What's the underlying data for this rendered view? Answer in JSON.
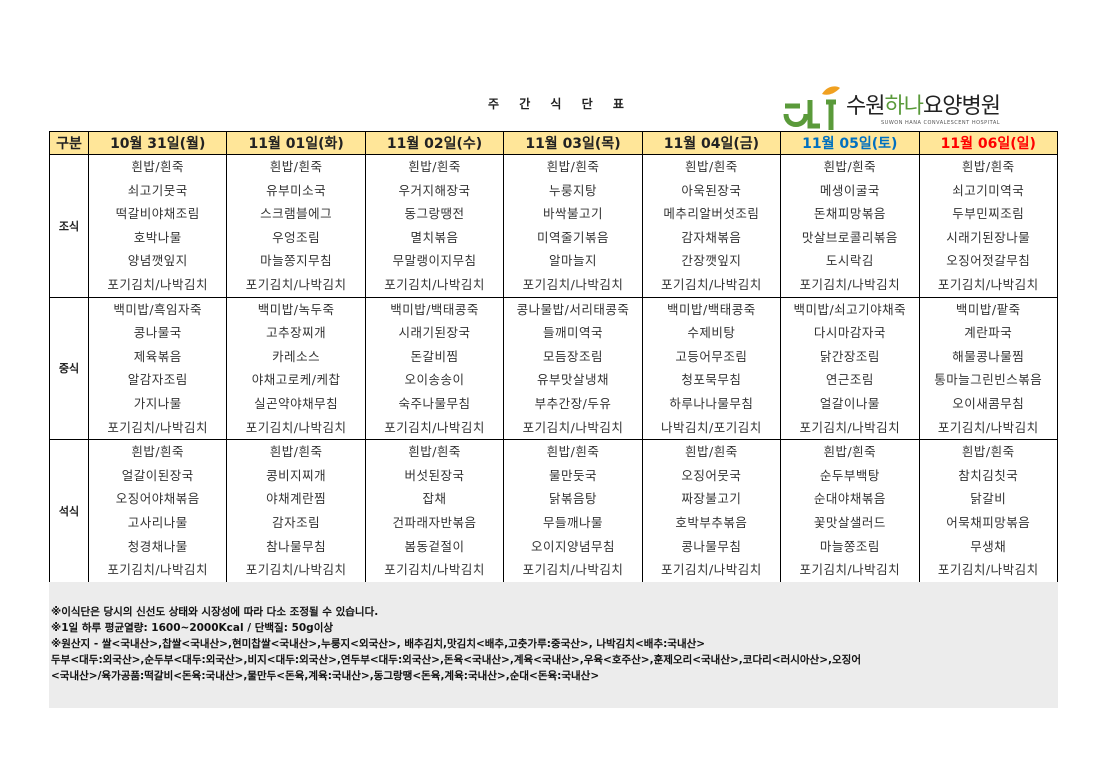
{
  "title": "주 간 식 단 표",
  "logo": {
    "name_pre": "수원",
    "name_green": "하나",
    "name_post": "요양병원",
    "subtitle": "SUWON HANA CONVALESCENT HOSPITAL",
    "green": "#5a9a3a",
    "leaf": "#f0a020"
  },
  "colors": {
    "header_bg": "#ffe699",
    "saturday": "#0070c0",
    "sunday": "#ff0000",
    "notes_bg": "#ececec"
  },
  "header": {
    "category_label": "구분",
    "days": [
      "10월 31일(월)",
      "11월 01일(화)",
      "11월 02일(수)",
      "11월 03일(목)",
      "11월 04일(금)",
      "11월 05일(토)",
      "11월 06일(일)"
    ]
  },
  "meals": [
    {
      "label": "조식",
      "days": [
        [
          "흰밥/흰죽",
          "쇠고기뭇국",
          "떡갈비야채조림",
          "호박나물",
          "양념깻잎지",
          "포기김치/나박김치"
        ],
        [
          "흰밥/흰죽",
          "유부미소국",
          "스크램블에그",
          "우엉조림",
          "마늘쫑지무침",
          "포기김치/나박김치"
        ],
        [
          "흰밥/흰죽",
          "우거지해장국",
          "동그랑땡전",
          "멸치볶음",
          "무말랭이지무침",
          "포기김치/나박김치"
        ],
        [
          "흰밥/흰죽",
          "누룽지탕",
          "바싹불고기",
          "미역줄기볶음",
          "알마늘지",
          "포기김치/나박김치"
        ],
        [
          "흰밥/흰죽",
          "아욱된장국",
          "메추리알버섯조림",
          "감자채볶음",
          "간장깻잎지",
          "포기김치/나박김치"
        ],
        [
          "흰밥/흰죽",
          "메생이굴국",
          "돈채피망볶음",
          "맛살브로콜리볶음",
          "도시락김",
          "포기김치/나박김치"
        ],
        [
          "흰밥/흰죽",
          "쇠고기미역국",
          "두부민찌조림",
          "시래기된장나물",
          "오징어젓갈무침",
          "포기김치/나박김치"
        ]
      ]
    },
    {
      "label": "중식",
      "days": [
        [
          "백미밥/흑임자죽",
          "콩나물국",
          "제육볶음",
          "알감자조림",
          "가지나물",
          "포기김치/나박김치"
        ],
        [
          "백미밥/녹두죽",
          "고추장찌개",
          "카레소스",
          "야채고로케/케찹",
          "실곤약야채무침",
          "포기김치/나박김치"
        ],
        [
          "백미밥/백태콩죽",
          "시래기된장국",
          "돈갈비찜",
          "오이송송이",
          "숙주나물무침",
          "포기김치/나박김치"
        ],
        [
          "콩나물밥/서리태콩죽",
          "들깨미역국",
          "모듬장조림",
          "유부맛살냉채",
          "부추간장/두유",
          "포기김치/나박김치"
        ],
        [
          "백미밥/백태콩죽",
          "수제비탕",
          "고등어무조림",
          "청포묵무침",
          "하루나나물무침",
          "나박김치/포기김치"
        ],
        [
          "백미밥/쇠고기야채죽",
          "다시마감자국",
          "닭간장조림",
          "연근조림",
          "얼갈이나물",
          "포기김치/나박김치"
        ],
        [
          "백미밥/팥죽",
          "계란파국",
          "해물콩나물찜",
          "통마늘그린빈스볶음",
          "오이새콤무침",
          "포기김치/나박김치"
        ]
      ]
    },
    {
      "label": "석식",
      "days": [
        [
          "흰밥/흰죽",
          "얼갈이된장국",
          "오징어야채볶음",
          "고사리나물",
          "청경채나물",
          "포기김치/나박김치"
        ],
        [
          "흰밥/흰죽",
          "콩비지찌개",
          "야채계란찜",
          "감자조림",
          "참나물무침",
          "포기김치/나박김치"
        ],
        [
          "흰밥/흰죽",
          "버섯된장국",
          "잡채",
          "건파래자반볶음",
          "봄동겉절이",
          "포기김치/나박김치"
        ],
        [
          "흰밥/흰죽",
          "물만둣국",
          "닭볶음탕",
          "무들깨나물",
          "오이지양념무침",
          "포기김치/나박김치"
        ],
        [
          "흰밥/흰죽",
          "오징어뭇국",
          "짜장불고기",
          "호박부추볶음",
          "콩나물무침",
          "포기김치/나박김치"
        ],
        [
          "흰밥/흰죽",
          "순두부백탕",
          "순대야채볶음",
          "꽃맛살샐러드",
          "마늘쫑조림",
          "포기김치/나박김치"
        ],
        [
          "흰밥/흰죽",
          "참치김칫국",
          "닭갈비",
          "어묵채피망볶음",
          "무생채",
          "포기김치/나박김치"
        ]
      ]
    }
  ],
  "notes": [
    "※이식단은 당시의 신선도 상태와 시장성에 따라 다소 조정될 수 있습니다.",
    "※1일 하루 평균열량: 1600~2000Kcal / 단백질: 50g이상",
    "※원산지 - 쌀<국내산>,찹쌀<국내산>,현미찹쌀<국내산>,누룽지<외국산>, 배추김치,맛김치<배추,고춧가루:중국산>, 나박김치<배추:국내산>",
    "두부<대두:외국산>,순두부<대두:외국산>,비지<대두:외국산>,연두부<대두:외국산>,돈육<국내산>,계육<국내산>,우육<호주산>,훈제오리<국내산>,코다리<러시아산>,오징어",
    "<국내산>/육가공품:떡갈비<돈육:국내산>,물만두<돈육,계육:국내산>,동그랑땡<돈육,계육:국내산>,순대<돈육:국내산>"
  ]
}
